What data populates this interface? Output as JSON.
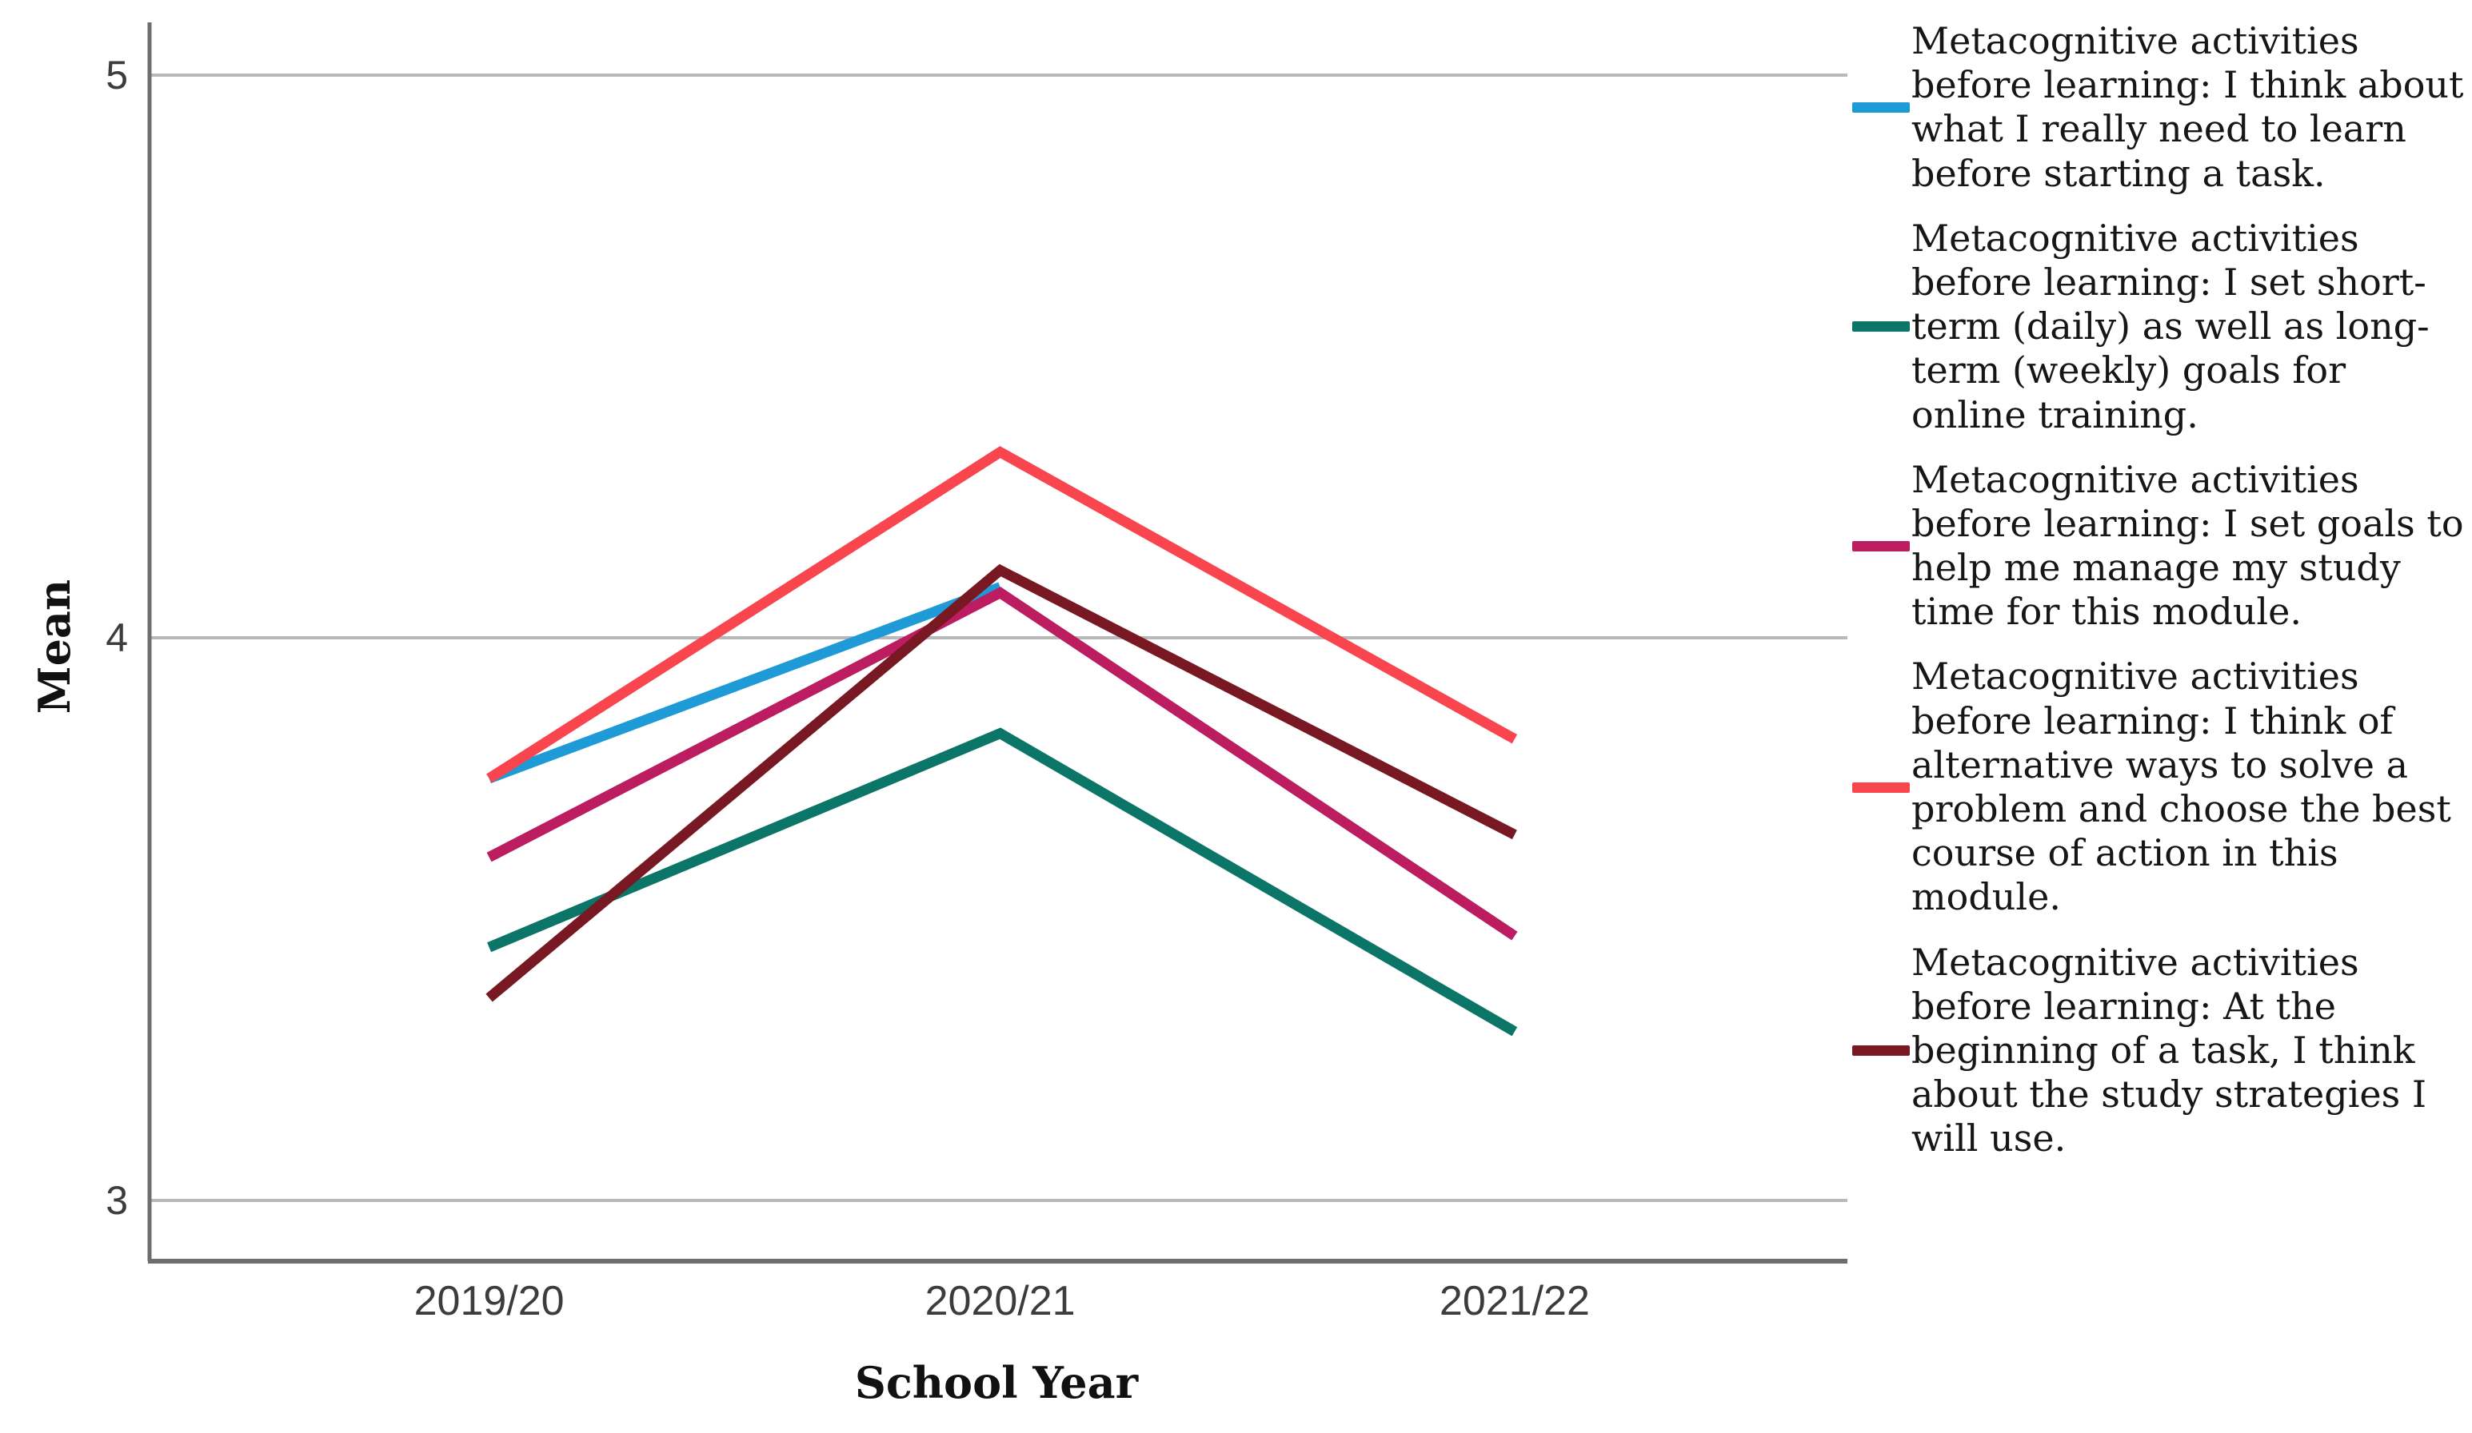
{
  "chart_data": {
    "type": "line",
    "title": "",
    "xlabel": "School Year",
    "ylabel": "Mean",
    "categories": [
      "2019/20",
      "2020/21",
      "2021/22"
    ],
    "y_ticks": [
      3,
      4,
      5
    ],
    "ylim": [
      2.89,
      5.09
    ],
    "grid": "horizontal-only",
    "legend_position": "right",
    "axis_color": "#6E6E6E",
    "grid_color": "#B8B8B8",
    "tick_label_color": "#3C3C3C",
    "series": [
      {
        "name": "Metacognitive activities before learning: I think about what I really need to learn before starting a task.",
        "color": "#1E9AD6",
        "values": [
          3.75,
          4.09,
          null
        ]
      },
      {
        "name": "Metacognitive activities before learning: I set short-term (daily) as well as long-term (weekly) goals for online training.",
        "color": "#0B7568",
        "values": [
          3.45,
          3.83,
          3.3
        ]
      },
      {
        "name": "Metacognitive activities before learning: I set goals to help me manage my study time for this module.",
        "color": "#BB1D60",
        "values": [
          3.61,
          4.08,
          3.47
        ]
      },
      {
        "name": "Metacognitive activities before learning: I think of alternative ways to solve a problem and choose the best course of action in this module.",
        "color": "#F9464E",
        "values": [
          3.75,
          4.33,
          3.82
        ]
      },
      {
        "name": "Metacognitive activities before learning: At the beginning of a task, I think about the study strategies I will use.",
        "color": "#771822",
        "values": [
          3.36,
          4.12,
          3.65
        ]
      }
    ]
  }
}
